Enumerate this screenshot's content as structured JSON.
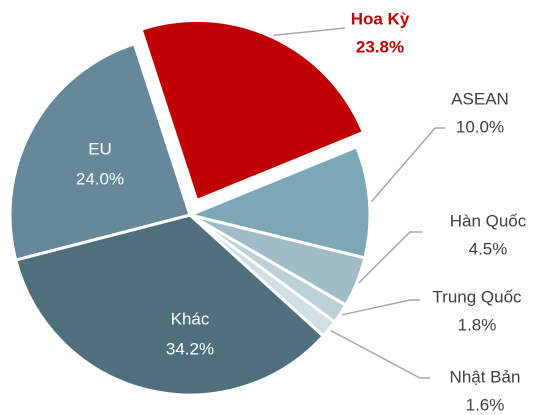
{
  "chart_data": {
    "type": "pie",
    "categories": [
      "Hoa Kỳ",
      "ASEAN",
      "Hàn Quốc",
      "Trung Quốc",
      "Nhật Bản",
      "Khác",
      "EU"
    ],
    "values": [
      23.8,
      10.0,
      4.5,
      1.8,
      1.6,
      34.2,
      24.0
    ],
    "value_labels": [
      "23.8%",
      "10.0%",
      "4.5%",
      "1.8%",
      "1.6%",
      "34.2%",
      "24.0%"
    ],
    "colors": [
      "#c00000",
      "#7ba7b7",
      "#a0bcc6",
      "#bcd0d7",
      "#d0dfe4",
      "#4f6f7c",
      "#65889a"
    ],
    "exploded": "Hoa Kỳ"
  }
}
